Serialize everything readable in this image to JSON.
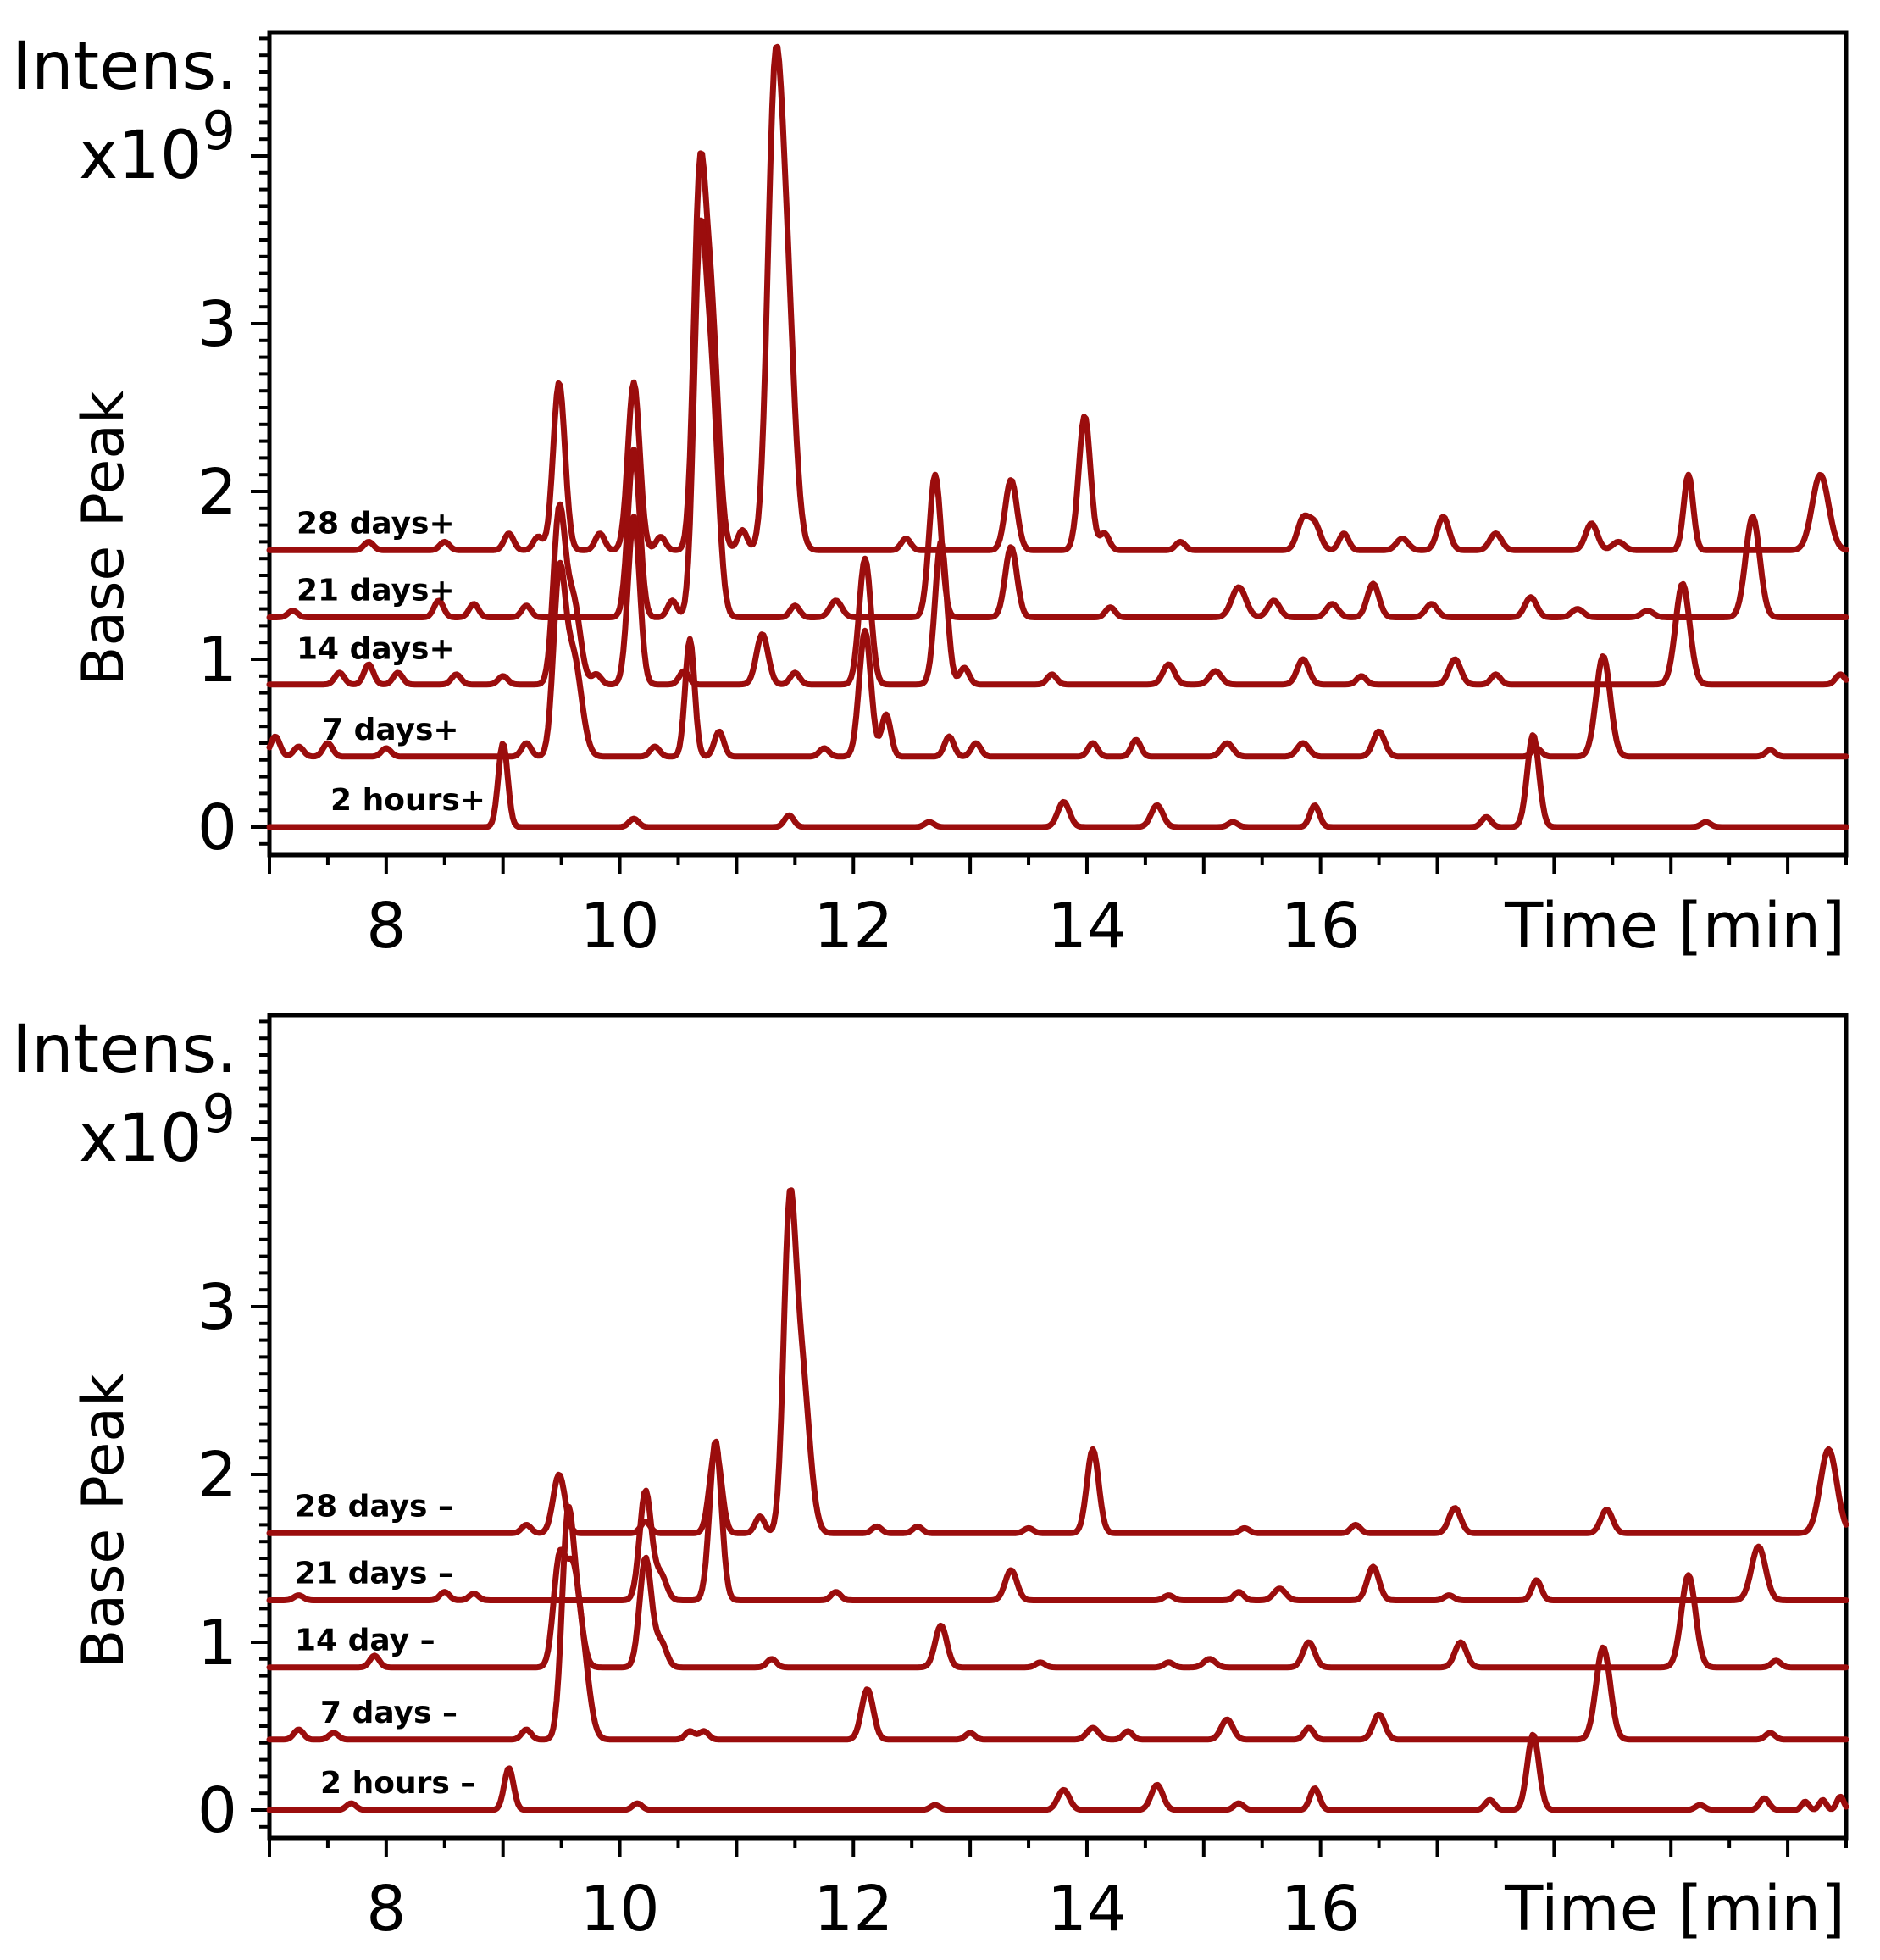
{
  "chart_data": [
    {
      "type": "line",
      "panel": "top",
      "y_title": "Intens.",
      "y_multiplier_base": "x10",
      "y_multiplier_exp": "9",
      "ylabel": "Base Peak",
      "xlabel": "Time [min]",
      "xlim": [
        7,
        20.5
      ],
      "ylim": [
        -0.2,
        4.7
      ],
      "x_ticks": [
        "8",
        "10",
        "12",
        "14",
        "16"
      ],
      "x_tick_values": [
        8,
        10,
        12,
        14,
        16
      ],
      "y_ticks": [
        "0",
        "1",
        "2",
        "3"
      ],
      "y_tick_values": [
        0,
        1,
        2,
        3
      ],
      "series": [
        {
          "name": "28 days+",
          "baseline": 1.65,
          "peaks": [
            [
              7.85,
              0.05,
              0.04
            ],
            [
              8.5,
              0.05,
              0.04
            ],
            [
              9.05,
              0.1,
              0.04
            ],
            [
              9.3,
              0.08,
              0.04
            ],
            [
              9.48,
              1.0,
              0.05
            ],
            [
              9.83,
              0.1,
              0.04
            ],
            [
              10.12,
              1.0,
              0.05
            ],
            [
              10.35,
              0.08,
              0.04
            ],
            [
              10.68,
              1.95,
              0.05
            ],
            [
              10.78,
              1.4,
              0.06
            ],
            [
              11.05,
              0.12,
              0.04
            ],
            [
              11.32,
              2.3,
              0.06
            ],
            [
              11.42,
              1.6,
              0.07
            ],
            [
              12.45,
              0.07,
              0.04
            ],
            [
              13.35,
              0.42,
              0.05
            ],
            [
              13.98,
              0.8,
              0.05
            ],
            [
              14.15,
              0.1,
              0.04
            ],
            [
              14.8,
              0.05,
              0.04
            ],
            [
              15.85,
              0.18,
              0.05
            ],
            [
              15.95,
              0.15,
              0.05
            ],
            [
              16.2,
              0.1,
              0.04
            ],
            [
              16.7,
              0.07,
              0.05
            ],
            [
              17.05,
              0.2,
              0.05
            ],
            [
              17.5,
              0.1,
              0.05
            ],
            [
              18.32,
              0.16,
              0.05
            ],
            [
              18.55,
              0.05,
              0.05
            ],
            [
              19.15,
              0.45,
              0.04
            ],
            [
              20.28,
              0.45,
              0.07
            ]
          ]
        },
        {
          "name": "21 days+",
          "baseline": 1.25,
          "peaks": [
            [
              7.2,
              0.04,
              0.04
            ],
            [
              8.45,
              0.1,
              0.04
            ],
            [
              8.75,
              0.08,
              0.04
            ],
            [
              9.2,
              0.07,
              0.04
            ],
            [
              10.12,
              1.0,
              0.05
            ],
            [
              10.45,
              0.1,
              0.04
            ],
            [
              10.68,
              1.95,
              0.05
            ],
            [
              10.78,
              1.4,
              0.06
            ],
            [
              11.5,
              0.07,
              0.04
            ],
            [
              11.85,
              0.1,
              0.05
            ],
            [
              12.7,
              0.85,
              0.05
            ],
            [
              13.35,
              0.42,
              0.05
            ],
            [
              14.2,
              0.06,
              0.04
            ],
            [
              15.3,
              0.18,
              0.06
            ],
            [
              15.6,
              0.1,
              0.05
            ],
            [
              16.1,
              0.08,
              0.05
            ],
            [
              16.45,
              0.2,
              0.05
            ],
            [
              16.95,
              0.08,
              0.05
            ],
            [
              17.8,
              0.12,
              0.05
            ],
            [
              18.2,
              0.05,
              0.05
            ],
            [
              18.8,
              0.04,
              0.05
            ],
            [
              19.7,
              0.6,
              0.06
            ]
          ]
        },
        {
          "name": "14 days+",
          "baseline": 0.85,
          "peaks": [
            [
              7.6,
              0.07,
              0.04
            ],
            [
              7.85,
              0.12,
              0.04
            ],
            [
              8.1,
              0.07,
              0.04
            ],
            [
              8.6,
              0.06,
              0.04
            ],
            [
              9.0,
              0.05,
              0.04
            ],
            [
              9.48,
              1.0,
              0.05
            ],
            [
              9.6,
              0.5,
              0.06
            ],
            [
              9.8,
              0.06,
              0.04
            ],
            [
              10.12,
              1.0,
              0.05
            ],
            [
              10.55,
              0.08,
              0.04
            ],
            [
              11.22,
              0.3,
              0.05
            ],
            [
              11.5,
              0.07,
              0.04
            ],
            [
              12.1,
              0.75,
              0.05
            ],
            [
              12.75,
              0.85,
              0.05
            ],
            [
              12.95,
              0.1,
              0.04
            ],
            [
              13.7,
              0.06,
              0.04
            ],
            [
              14.7,
              0.12,
              0.05
            ],
            [
              15.1,
              0.08,
              0.05
            ],
            [
              15.85,
              0.15,
              0.05
            ],
            [
              16.35,
              0.05,
              0.04
            ],
            [
              17.15,
              0.15,
              0.05
            ],
            [
              17.5,
              0.06,
              0.04
            ],
            [
              19.1,
              0.6,
              0.06
            ],
            [
              20.45,
              0.06,
              0.04
            ]
          ]
        },
        {
          "name": "7 days+",
          "baseline": 0.42,
          "peaks": [
            [
              7.05,
              0.12,
              0.04
            ],
            [
              7.25,
              0.06,
              0.04
            ],
            [
              7.5,
              0.08,
              0.04
            ],
            [
              8.0,
              0.05,
              0.04
            ],
            [
              9.2,
              0.08,
              0.04
            ],
            [
              9.48,
              1.0,
              0.05
            ],
            [
              9.6,
              0.6,
              0.07
            ],
            [
              10.3,
              0.06,
              0.04
            ],
            [
              10.6,
              0.7,
              0.04
            ],
            [
              10.85,
              0.15,
              0.04
            ],
            [
              11.75,
              0.05,
              0.04
            ],
            [
              12.1,
              0.75,
              0.05
            ],
            [
              12.28,
              0.25,
              0.04
            ],
            [
              12.82,
              0.12,
              0.04
            ],
            [
              13.05,
              0.08,
              0.04
            ],
            [
              14.05,
              0.08,
              0.04
            ],
            [
              14.42,
              0.1,
              0.04
            ],
            [
              15.2,
              0.08,
              0.05
            ],
            [
              15.85,
              0.08,
              0.05
            ],
            [
              16.5,
              0.15,
              0.05
            ],
            [
              17.85,
              0.05,
              0.04
            ],
            [
              18.42,
              0.6,
              0.06
            ],
            [
              19.85,
              0.04,
              0.04
            ]
          ]
        },
        {
          "name": "2 hours+",
          "baseline": 0.0,
          "peaks": [
            [
              9.0,
              0.5,
              0.04
            ],
            [
              10.12,
              0.05,
              0.04
            ],
            [
              11.45,
              0.07,
              0.04
            ],
            [
              12.65,
              0.03,
              0.04
            ],
            [
              13.8,
              0.15,
              0.05
            ],
            [
              14.6,
              0.13,
              0.05
            ],
            [
              15.25,
              0.03,
              0.04
            ],
            [
              15.95,
              0.13,
              0.04
            ],
            [
              17.42,
              0.06,
              0.04
            ],
            [
              17.82,
              0.55,
              0.05
            ],
            [
              19.3,
              0.03,
              0.04
            ]
          ]
        }
      ]
    },
    {
      "type": "line",
      "panel": "bottom",
      "y_title": "Intens.",
      "y_multiplier_base": "x10",
      "y_multiplier_exp": "9",
      "ylabel": "Base Peak",
      "xlabel": "Time [min]",
      "xlim": [
        7,
        20.5
      ],
      "ylim": [
        -0.2,
        4.7
      ],
      "x_ticks": [
        "8",
        "10",
        "12",
        "14",
        "16"
      ],
      "x_tick_values": [
        8,
        10,
        12,
        14,
        16
      ],
      "y_ticks": [
        "0",
        "1",
        "2",
        "3"
      ],
      "y_tick_values": [
        0,
        1,
        2,
        3
      ],
      "series": [
        {
          "name": "28 days –",
          "baseline": 1.65,
          "peaks": [
            [
              9.2,
              0.05,
              0.04
            ],
            [
              9.48,
              0.35,
              0.05
            ],
            [
              10.22,
              0.07,
              0.04
            ],
            [
              10.82,
              0.5,
              0.05
            ],
            [
              11.2,
              0.1,
              0.04
            ],
            [
              11.45,
              1.65,
              0.05
            ],
            [
              11.55,
              1.0,
              0.07
            ],
            [
              12.2,
              0.04,
              0.04
            ],
            [
              12.55,
              0.04,
              0.04
            ],
            [
              13.5,
              0.03,
              0.04
            ],
            [
              14.05,
              0.5,
              0.05
            ],
            [
              15.35,
              0.03,
              0.04
            ],
            [
              16.3,
              0.05,
              0.04
            ],
            [
              17.15,
              0.15,
              0.05
            ],
            [
              18.45,
              0.14,
              0.05
            ],
            [
              20.35,
              0.5,
              0.07
            ]
          ]
        },
        {
          "name": "21 days –",
          "baseline": 1.25,
          "peaks": [
            [
              7.25,
              0.03,
              0.04
            ],
            [
              8.5,
              0.05,
              0.04
            ],
            [
              8.75,
              0.04,
              0.04
            ],
            [
              10.22,
              0.65,
              0.05
            ],
            [
              10.35,
              0.15,
              0.05
            ],
            [
              10.82,
              0.95,
              0.05
            ],
            [
              11.85,
              0.05,
              0.04
            ],
            [
              13.35,
              0.18,
              0.05
            ],
            [
              14.7,
              0.03,
              0.04
            ],
            [
              15.3,
              0.05,
              0.04
            ],
            [
              15.65,
              0.07,
              0.05
            ],
            [
              16.45,
              0.2,
              0.05
            ],
            [
              17.1,
              0.03,
              0.04
            ],
            [
              17.85,
              0.12,
              0.04
            ],
            [
              19.75,
              0.32,
              0.06
            ]
          ]
        },
        {
          "name": "14 day –",
          "baseline": 0.85,
          "peaks": [
            [
              7.9,
              0.07,
              0.04
            ],
            [
              9.48,
              0.6,
              0.05
            ],
            [
              9.6,
              0.6,
              0.06
            ],
            [
              10.22,
              0.65,
              0.05
            ],
            [
              10.35,
              0.15,
              0.05
            ],
            [
              11.3,
              0.05,
              0.04
            ],
            [
              12.75,
              0.25,
              0.05
            ],
            [
              13.6,
              0.03,
              0.04
            ],
            [
              14.7,
              0.03,
              0.04
            ],
            [
              15.05,
              0.05,
              0.05
            ],
            [
              15.9,
              0.15,
              0.05
            ],
            [
              17.2,
              0.15,
              0.05
            ],
            [
              19.15,
              0.55,
              0.06
            ],
            [
              19.9,
              0.04,
              0.04
            ]
          ]
        },
        {
          "name": "7 days –",
          "baseline": 0.42,
          "peaks": [
            [
              7.25,
              0.06,
              0.04
            ],
            [
              7.55,
              0.04,
              0.04
            ],
            [
              9.2,
              0.06,
              0.04
            ],
            [
              9.55,
              1.1,
              0.05
            ],
            [
              9.65,
              0.7,
              0.07
            ],
            [
              10.6,
              0.05,
              0.04
            ],
            [
              10.72,
              0.05,
              0.04
            ],
            [
              12.12,
              0.3,
              0.05
            ],
            [
              13.0,
              0.04,
              0.04
            ],
            [
              14.05,
              0.07,
              0.05
            ],
            [
              14.35,
              0.05,
              0.04
            ],
            [
              15.2,
              0.12,
              0.05
            ],
            [
              15.9,
              0.07,
              0.04
            ],
            [
              16.5,
              0.15,
              0.05
            ],
            [
              18.42,
              0.55,
              0.06
            ],
            [
              19.85,
              0.04,
              0.04
            ]
          ]
        },
        {
          "name": "2 hours –",
          "baseline": 0.0,
          "peaks": [
            [
              7.7,
              0.04,
              0.04
            ],
            [
              9.05,
              0.25,
              0.04
            ],
            [
              10.15,
              0.04,
              0.04
            ],
            [
              12.7,
              0.03,
              0.04
            ],
            [
              13.8,
              0.12,
              0.05
            ],
            [
              14.6,
              0.15,
              0.05
            ],
            [
              15.3,
              0.04,
              0.04
            ],
            [
              15.95,
              0.13,
              0.04
            ],
            [
              17.45,
              0.06,
              0.04
            ],
            [
              17.82,
              0.45,
              0.05
            ],
            [
              19.25,
              0.03,
              0.04
            ],
            [
              19.8,
              0.07,
              0.04
            ],
            [
              20.15,
              0.05,
              0.03
            ],
            [
              20.3,
              0.06,
              0.03
            ],
            [
              20.45,
              0.08,
              0.03
            ]
          ]
        }
      ]
    }
  ]
}
